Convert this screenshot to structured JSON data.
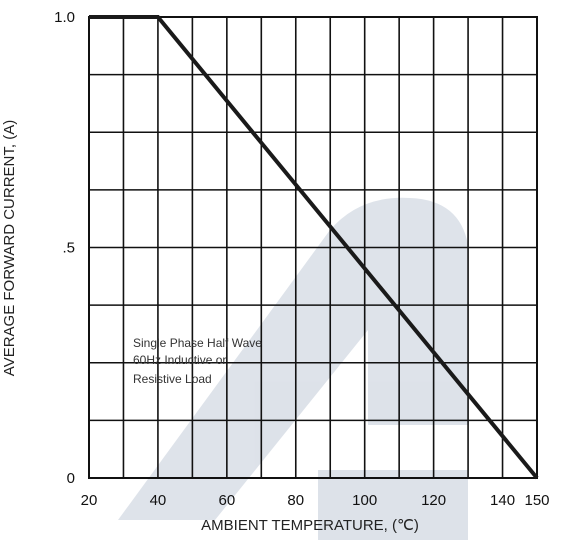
{
  "chart_data": {
    "type": "line",
    "title": "",
    "xlabel": "AMBIENT TEMPERATURE, (℃)",
    "ylabel": "AVERAGE FORWARD CURRENT, (A)",
    "xlim": [
      20,
      150
    ],
    "ylim": [
      0,
      1.0
    ],
    "grid": true,
    "x_ticks": [
      {
        "value": 20,
        "label": "20"
      },
      {
        "value": 40,
        "label": "40"
      },
      {
        "value": 60,
        "label": "60"
      },
      {
        "value": 80,
        "label": "80"
      },
      {
        "value": 100,
        "label": "100"
      },
      {
        "value": 120,
        "label": "120"
      },
      {
        "value": 140,
        "label": "140"
      },
      {
        "value": 150,
        "label": "150"
      }
    ],
    "y_ticks": [
      {
        "value": 0,
        "label": "0"
      },
      {
        "value": 0.5,
        "label": ".5"
      },
      {
        "value": 1.0,
        "label": "1.0"
      }
    ],
    "series": [
      {
        "x": [
          20,
          40,
          150
        ],
        "y": [
          1.0,
          1.0,
          0
        ],
        "color": "#1a1a1a"
      }
    ],
    "annotation": [
      "Single Phase Half Wave",
      "60Hz Inductive or",
      "Resistive Load"
    ]
  }
}
